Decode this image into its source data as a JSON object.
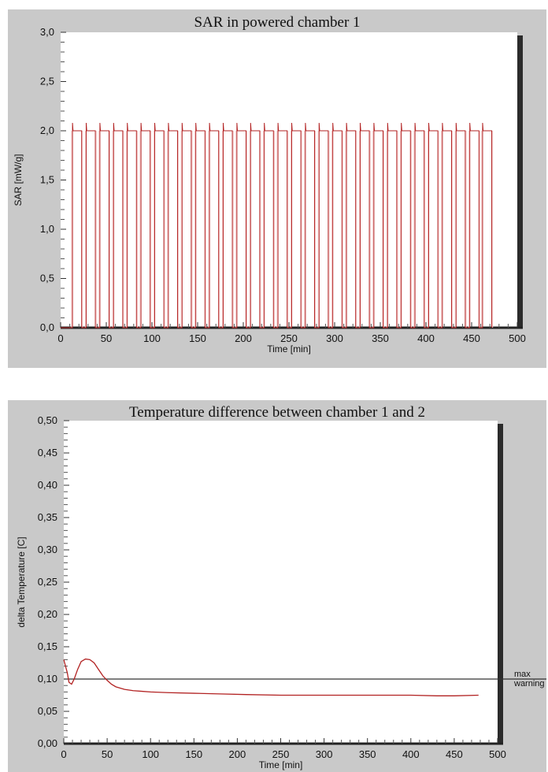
{
  "chart_data": [
    {
      "type": "line",
      "title": "SAR in powered chamber 1",
      "xlabel": "Time [min]",
      "ylabel": "SAR [mW/g]",
      "xlim": [
        0,
        500
      ],
      "ylim": [
        0,
        3
      ],
      "x_ticks": [
        "0",
        "50",
        "100",
        "150",
        "200",
        "250",
        "300",
        "350",
        "400",
        "450",
        "500"
      ],
      "y_ticks": [
        "0,0",
        "0,5",
        "1,0",
        "1,5",
        "2,0",
        "2,5",
        "3,0"
      ],
      "grid": false,
      "series": [
        {
          "color": "#b22222",
          "pattern": "square wave: ~10 min on at 2.0 then ~5 min off at 0.0",
          "on_level": 2.0,
          "off_level": 0.0,
          "overshoot": 2.08,
          "on_start_times": [
            13,
            28,
            43,
            58,
            73,
            88,
            103,
            118,
            133,
            148,
            163,
            178,
            193,
            208,
            223,
            238,
            253,
            268,
            283,
            298,
            313,
            328,
            343,
            358,
            373,
            388,
            403,
            418,
            433,
            448,
            462
          ],
          "on_duration": 10,
          "end_time": 472
        }
      ]
    },
    {
      "type": "line",
      "title": "Temperature difference between chamber 1 and 2",
      "xlabel": "Time [min]",
      "ylabel": "delta Temperature [C]",
      "xlim": [
        0,
        500
      ],
      "ylim": [
        0,
        0.5
      ],
      "x_ticks": [
        "0",
        "50",
        "100",
        "150",
        "200",
        "250",
        "300",
        "350",
        "400",
        "450",
        "500"
      ],
      "y_ticks": [
        "0,00",
        "0,05",
        "0,10",
        "0,15",
        "0,20",
        "0,25",
        "0,30",
        "0,35",
        "0,40",
        "0,45",
        "0,50"
      ],
      "grid": false,
      "series": [
        {
          "color": "#b22222",
          "x": [
            0,
            2,
            4,
            6,
            9,
            12,
            16,
            20,
            25,
            30,
            35,
            40,
            45,
            50,
            55,
            60,
            65,
            70,
            80,
            90,
            100,
            120,
            150,
            180,
            210,
            250,
            300,
            350,
            400,
            430,
            450,
            478
          ],
          "y": [
            0.13,
            0.12,
            0.11,
            0.095,
            0.092,
            0.1,
            0.115,
            0.127,
            0.131,
            0.13,
            0.125,
            0.115,
            0.105,
            0.098,
            0.092,
            0.088,
            0.086,
            0.084,
            0.082,
            0.081,
            0.08,
            0.079,
            0.078,
            0.077,
            0.076,
            0.075,
            0.075,
            0.075,
            0.075,
            0.074,
            0.074,
            0.075
          ]
        }
      ],
      "reference_lines": [
        {
          "y": 0.1,
          "labels": [
            "max",
            "warning"
          ]
        }
      ]
    }
  ]
}
